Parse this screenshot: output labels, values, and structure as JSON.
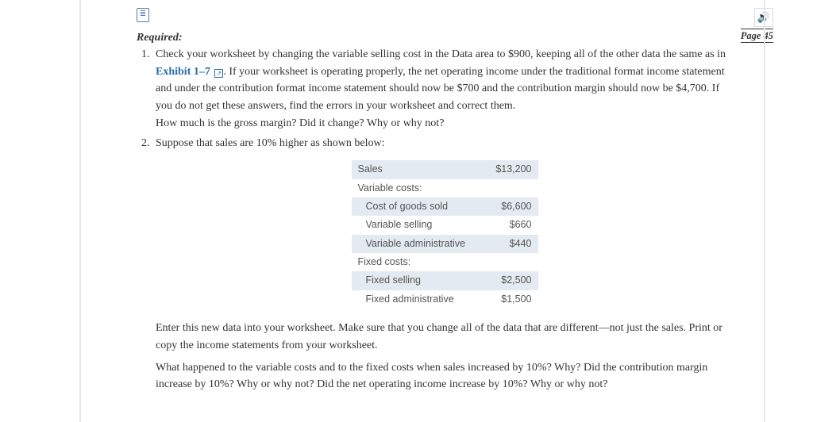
{
  "page_label": "Page 45",
  "heading": "Required:",
  "sound_glyph": "🔊",
  "doc_glyph": "≣",
  "link_glyph": "↗",
  "item1": {
    "lead": "Check your worksheet by changing the variable selling cost in the Data area to $900, keeping all of the other data the same as in ",
    "exhibit": "Exhibit 1–7",
    "tail": ". If your worksheet is operating properly, the net operating income under the traditional format income statement and under the contribution format income statement should now be $700 and the contribution margin should now be $4,700. If you do not get these answers, find the errors in your worksheet and correct them.",
    "q": "How much is the gross margin? Did it change? Why or why not?"
  },
  "item2": {
    "lead": "Suppose that sales are 10% higher as shown below:"
  },
  "table": {
    "rows": [
      {
        "label": "Sales",
        "value": "$13,200",
        "band": true,
        "indent": false
      },
      {
        "label": "Variable costs:",
        "value": "",
        "band": false,
        "indent": false
      },
      {
        "label": "Cost of goods sold",
        "value": "$6,600",
        "band": true,
        "indent": true
      },
      {
        "label": "Variable selling",
        "value": "$660",
        "band": false,
        "indent": true
      },
      {
        "label": "Variable administrative",
        "value": "$440",
        "band": true,
        "indent": true
      },
      {
        "label": "Fixed costs:",
        "value": "",
        "band": false,
        "indent": false
      },
      {
        "label": "Fixed selling",
        "value": "$2,500",
        "band": true,
        "indent": true
      },
      {
        "label": "Fixed administrative",
        "value": "$1,500",
        "band": false,
        "indent": true
      }
    ]
  },
  "after": {
    "p1": "Enter this new data into your worksheet. Make sure that you change all of the data that are different—not just the sales. Print or copy the income statements from your worksheet.",
    "p2": "What happened to the variable costs and to the fixed costs when sales increased by 10%? Why? Did the contribution margin increase by 10%? Why or why not? Did the net operating income increase by 10%? Why or why not?"
  },
  "colors": {
    "band": "#e4eaf1",
    "link": "#2a6ca8",
    "rule": "#e8e8e8"
  }
}
